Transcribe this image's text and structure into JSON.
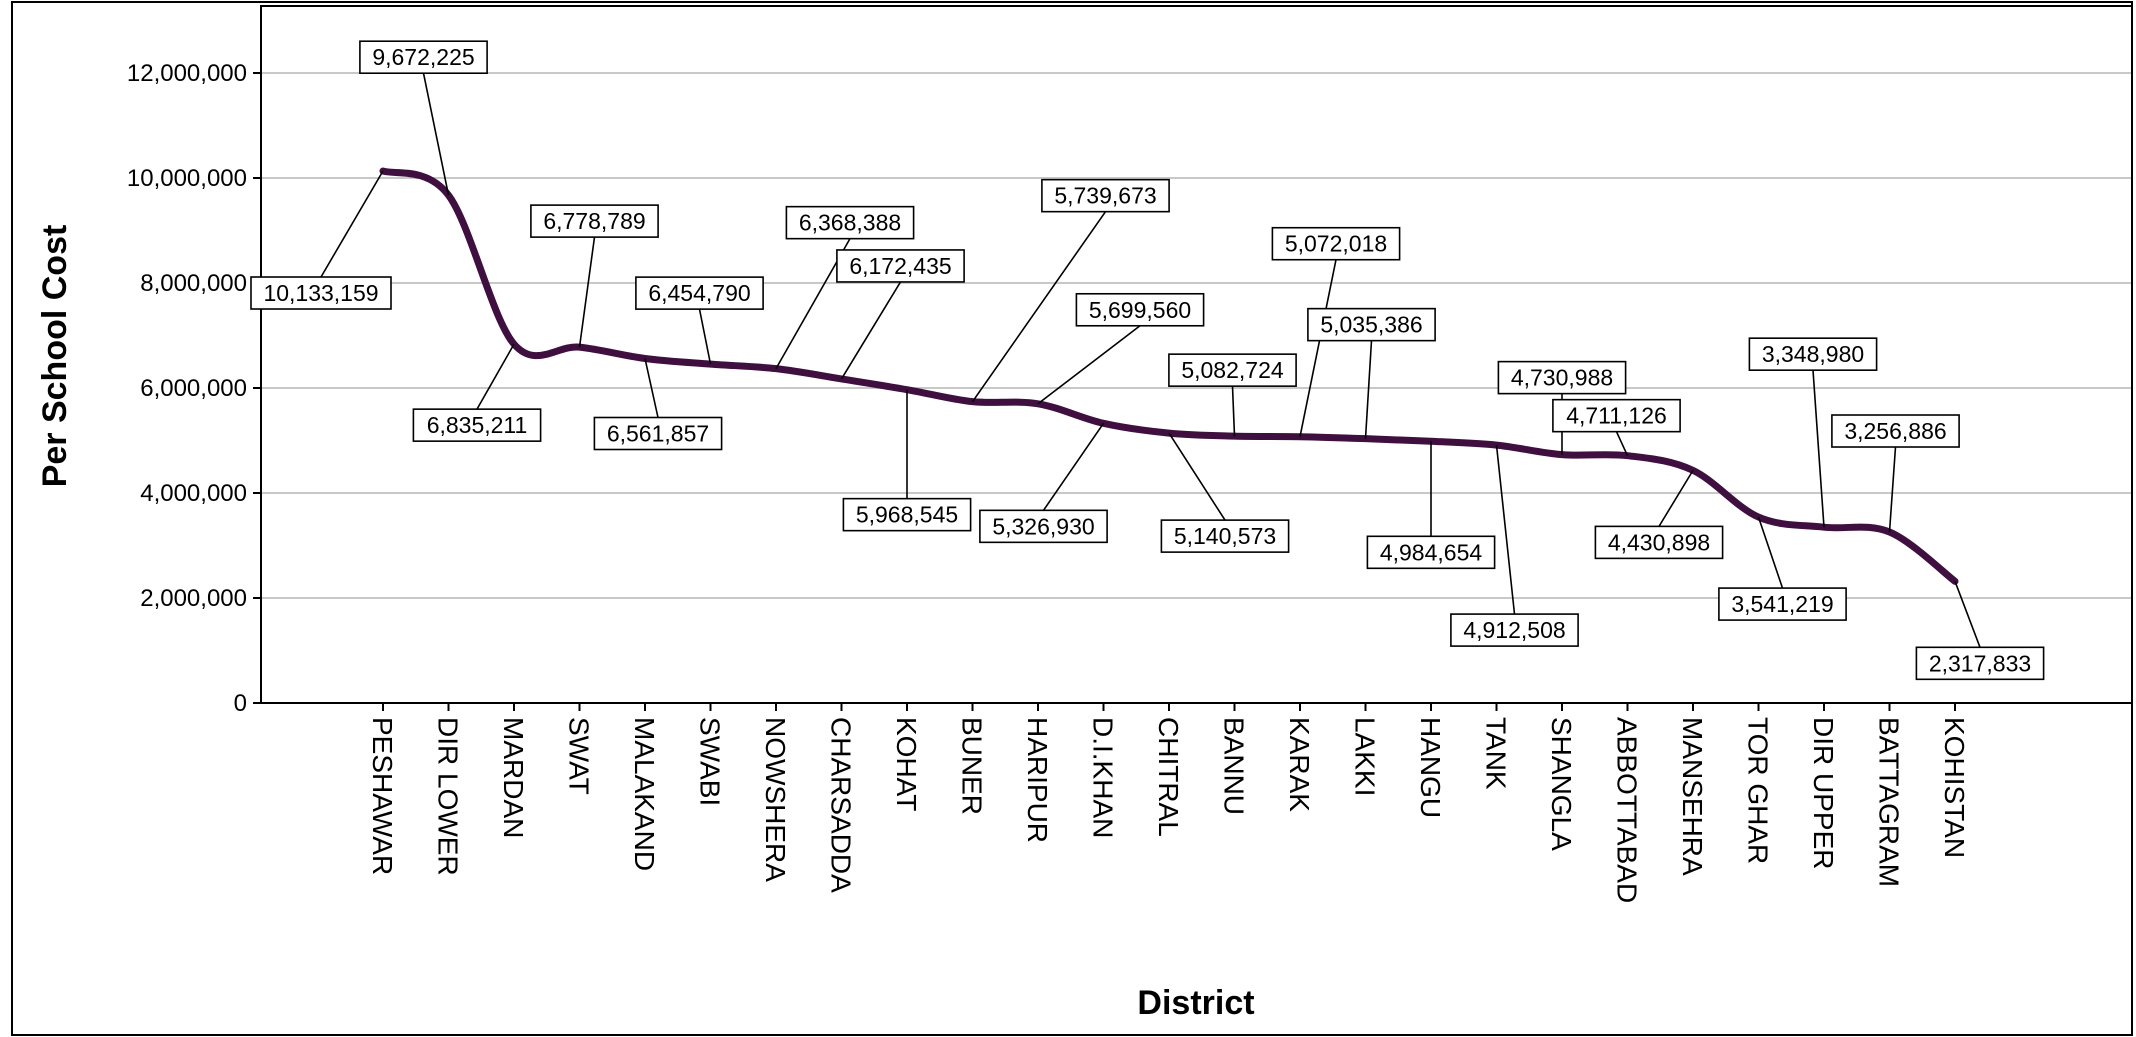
{
  "chart_data": {
    "type": "line",
    "xlabel": "District",
    "ylabel": "Per School Cost",
    "ylim": [
      0,
      13500000
    ],
    "yticks": [
      0,
      2000000,
      4000000,
      6000000,
      8000000,
      10000000,
      12000000
    ],
    "ytick_labels": [
      "0",
      "2,000,000",
      "4,000,000",
      "6,000,000",
      "8,000,000",
      "10,000,000",
      "12,000,000"
    ],
    "grid": true,
    "line_color": "#3f0f3f",
    "categories": [
      "PESHAWAR",
      "DIR LOWER",
      "MARDAN",
      "SWAT",
      "MALAKAND",
      "SWABI",
      "NOWSHERA",
      "CHARSADDA",
      "KOHAT",
      "BUNER",
      "HARIPUR",
      "D.I.KHAN",
      "CHITRAL",
      "BANNU",
      "KARAK",
      "LAKKI",
      "HANGU",
      "TANK",
      "SHANGLA",
      "ABBOTTABAD",
      "MANSEHRA",
      "TOR GHAR",
      "DIR UPPER",
      "BATTAGRAM",
      "KOHISTAN"
    ],
    "values": [
      10133159,
      9672225,
      6835211,
      6778789,
      6561857,
      6454790,
      6368388,
      6172435,
      5968545,
      5739673,
      5699560,
      5326930,
      5140573,
      5082724,
      5072018,
      5035386,
      4984654,
      4912508,
      4730988,
      4711126,
      4430898,
      3541219,
      3348980,
      3256886,
      2317833
    ],
    "data_labels": [
      "10,133,159",
      "9,672,225",
      "6,835,211",
      "6,778,789",
      "6,561,857",
      "6,454,790",
      "6,368,388",
      "6,172,435",
      "5,968,545",
      "5,739,673",
      "5,699,560",
      "5,326,930",
      "5,140,573",
      "5,082,724",
      "5,072,018",
      "5,035,386",
      "4,984,654",
      "4,912,508",
      "4,730,988",
      "4,711,126",
      "4,430,898",
      "3,541,219",
      "3,348,980",
      "3,256,886",
      "2,317,833"
    ]
  }
}
